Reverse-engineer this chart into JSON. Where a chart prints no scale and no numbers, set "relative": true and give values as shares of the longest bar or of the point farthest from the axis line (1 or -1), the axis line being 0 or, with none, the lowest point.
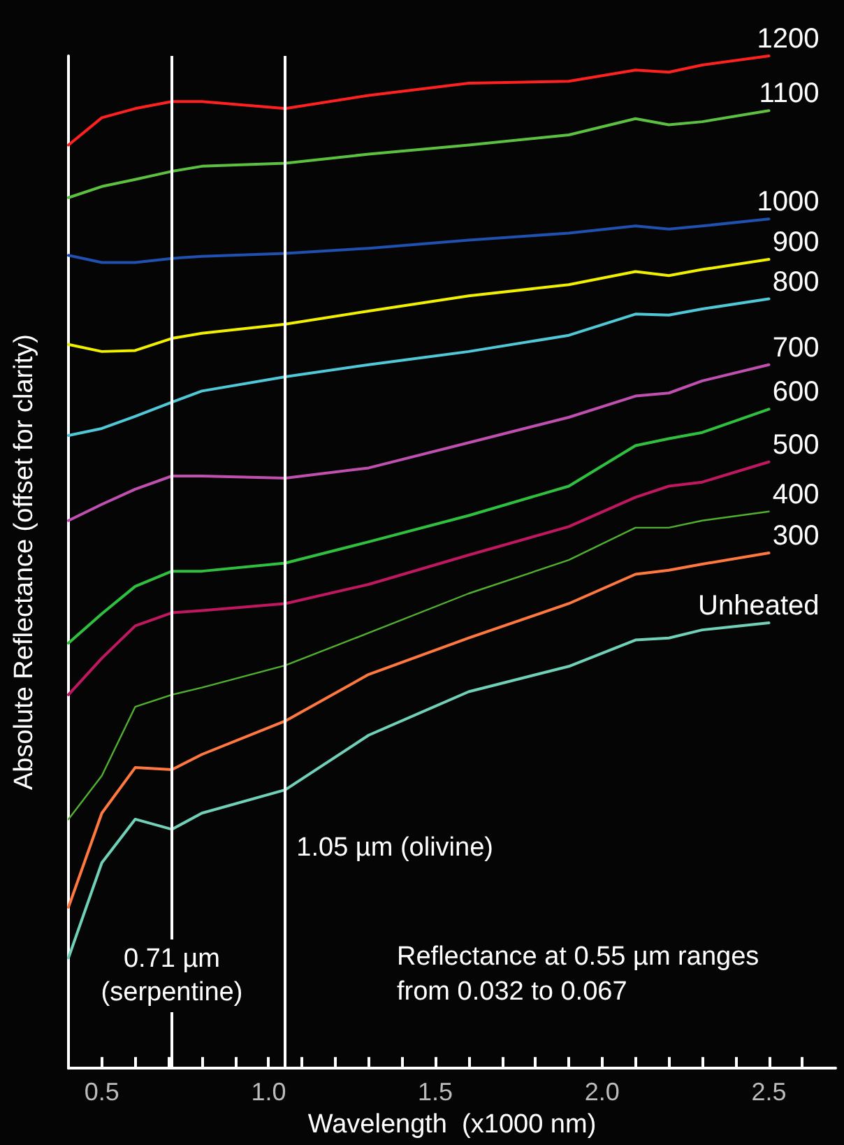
{
  "chart_data": {
    "type": "line",
    "relative": true,
    "xlabel": "Wavelength  (x1000 nm)",
    "ylabel": "Absolute Reflectance (offset for clarity)",
    "x": [
      0.4,
      0.5,
      0.6,
      0.71,
      0.8,
      1.05,
      1.3,
      1.6,
      1.9,
      2.1,
      2.2,
      2.3,
      2.5
    ],
    "xlim": [
      0.4,
      2.7
    ],
    "xticks": [
      {
        "value": 0.4,
        "label": null
      },
      {
        "value": 0.5,
        "label": "0.5"
      },
      {
        "value": 0.6,
        "label": null
      },
      {
        "value": 0.7,
        "label": null
      },
      {
        "value": 0.8,
        "label": null
      },
      {
        "value": 0.9,
        "label": null
      },
      {
        "value": 1.0,
        "label": "1.0"
      },
      {
        "value": 1.1,
        "label": null
      },
      {
        "value": 1.2,
        "label": null
      },
      {
        "value": 1.3,
        "label": null
      },
      {
        "value": 1.4,
        "label": null
      },
      {
        "value": 1.5,
        "label": "1.5"
      },
      {
        "value": 1.6,
        "label": null
      },
      {
        "value": 1.7,
        "label": null
      },
      {
        "value": 1.8,
        "label": null
      },
      {
        "value": 1.9,
        "label": null
      },
      {
        "value": 2.0,
        "label": "2.0"
      },
      {
        "value": 2.1,
        "label": null
      },
      {
        "value": 2.2,
        "label": null
      },
      {
        "value": 2.3,
        "label": null
      },
      {
        "value": 2.4,
        "label": null
      },
      {
        "value": 2.5,
        "label": "2.5"
      },
      {
        "value": 2.6,
        "label": null
      }
    ],
    "series": [
      {
        "name": "1200",
        "color": "#ff2020",
        "values": [
          0.912,
          0.939,
          0.948,
          0.955,
          0.955,
          0.948,
          0.961,
          0.973,
          0.975,
          0.986,
          0.984,
          0.991,
          1.0
        ]
      },
      {
        "name": "1100",
        "color": "#5cc040",
        "values": [
          0.86,
          0.871,
          0.878,
          0.886,
          0.891,
          0.894,
          0.903,
          0.912,
          0.922,
          0.938,
          0.932,
          0.935,
          0.946
        ]
      },
      {
        "name": "1000",
        "color": "#2050b0",
        "values": [
          0.803,
          0.796,
          0.796,
          0.8,
          0.802,
          0.805,
          0.81,
          0.818,
          0.825,
          0.832,
          0.829,
          0.832,
          0.839
        ]
      },
      {
        "name": "900",
        "color": "#f0f000",
        "values": [
          0.715,
          0.708,
          0.709,
          0.721,
          0.726,
          0.735,
          0.748,
          0.763,
          0.774,
          0.787,
          0.783,
          0.789,
          0.799
        ]
      },
      {
        "name": "800",
        "color": "#50c8d8",
        "values": [
          0.625,
          0.632,
          0.644,
          0.658,
          0.669,
          0.683,
          0.695,
          0.708,
          0.724,
          0.745,
          0.744,
          0.75,
          0.76
        ]
      },
      {
        "name": "700",
        "color": "#c050b0",
        "values": [
          0.541,
          0.557,
          0.572,
          0.585,
          0.585,
          0.583,
          0.593,
          0.618,
          0.643,
          0.664,
          0.667,
          0.679,
          0.695
        ]
      },
      {
        "name": "600",
        "color": "#30c040",
        "values": [
          0.42,
          0.449,
          0.476,
          0.491,
          0.491,
          0.499,
          0.52,
          0.546,
          0.575,
          0.615,
          0.622,
          0.628,
          0.651
        ]
      },
      {
        "name": "500",
        "color": "#c01860",
        "values": [
          0.369,
          0.405,
          0.437,
          0.45,
          0.452,
          0.459,
          0.478,
          0.507,
          0.535,
          0.564,
          0.575,
          0.579,
          0.599
        ]
      },
      {
        "name": "400",
        "color": "#50b030",
        "values": [
          0.246,
          0.289,
          0.357,
          0.369,
          0.376,
          0.398,
          0.43,
          0.469,
          0.502,
          0.534,
          0.534,
          0.541,
          0.55
        ]
      },
      {
        "name": "300",
        "color": "#ff7840",
        "values": [
          0.159,
          0.252,
          0.297,
          0.295,
          0.31,
          0.343,
          0.389,
          0.425,
          0.459,
          0.488,
          0.492,
          0.498,
          0.509
        ]
      },
      {
        "name": "Unheated",
        "color": "#70d0b8",
        "values": [
          0.109,
          0.203,
          0.246,
          0.236,
          0.252,
          0.275,
          0.329,
          0.372,
          0.397,
          0.423,
          0.425,
          0.433,
          0.44
        ]
      }
    ],
    "ref_lines": [
      {
        "axis": "x",
        "value": 0.71,
        "label": "0.71 µm\n(serpentine)",
        "color": "#ffffff"
      },
      {
        "axis": "x",
        "value": 1.05,
        "label": "1.05 µm (olivine)",
        "color": "#ffffff"
      }
    ],
    "annotations": [
      "Reflectance at 0.55 µm ranges from 0.032 to 0.067"
    ],
    "legend": false,
    "grid": false,
    "marker": "none",
    "line_style": "solid"
  }
}
